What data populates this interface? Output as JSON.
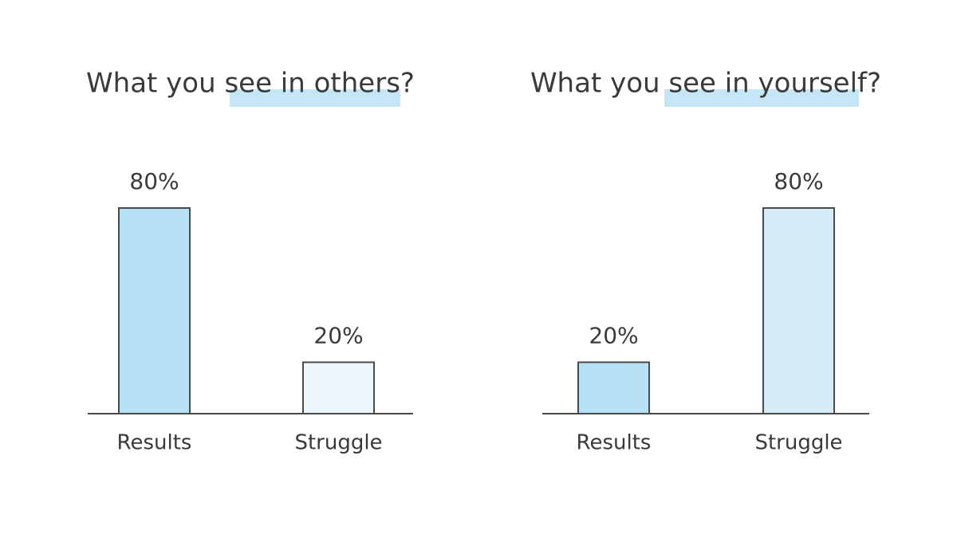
{
  "chart_data": [
    {
      "type": "bar",
      "title": "What you see in others?",
      "categories": [
        "Results",
        "Struggle"
      ],
      "values": [
        80,
        20
      ],
      "value_labels": [
        "80%",
        "20%"
      ],
      "colors": [
        "#b8e0f5",
        "#eaf5fc"
      ],
      "ylim": [
        0,
        100
      ]
    },
    {
      "type": "bar",
      "title": "What you see in yourself?",
      "categories": [
        "Results",
        "Struggle"
      ],
      "values": [
        20,
        80
      ],
      "value_labels": [
        "20%",
        "80%"
      ],
      "colors": [
        "#b8e0f5",
        "#d6edf9"
      ],
      "ylim": [
        0,
        100
      ]
    }
  ]
}
